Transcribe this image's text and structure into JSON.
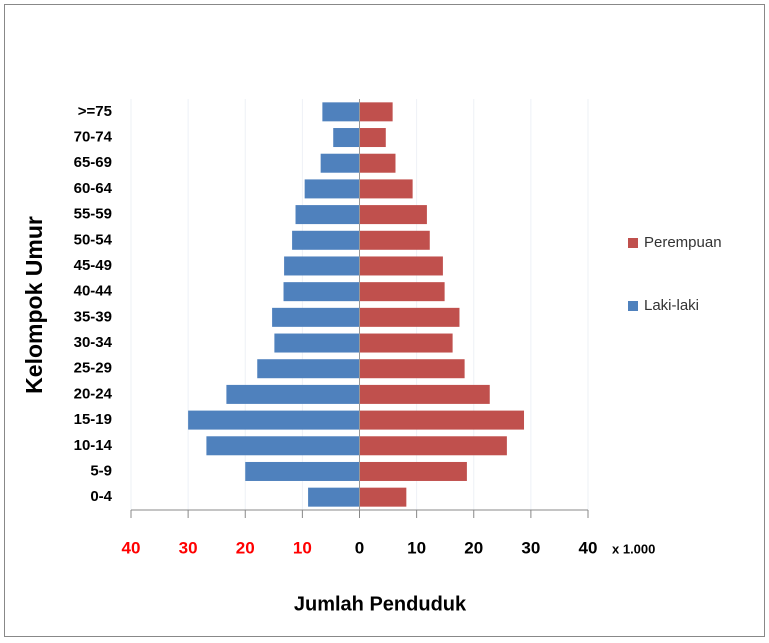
{
  "chart_data": {
    "type": "pyramid",
    "y_label": "Kelompok Umur",
    "x_label": "Jumlah Penduduk",
    "x_unit_note": "x 1.000",
    "categories": [
      "0-4",
      "5-9",
      "10-14",
      "15-19",
      "20-24",
      "25-29",
      "30-34",
      "35-39",
      "40-44",
      "45-49",
      "50-54",
      "55-59",
      "60-64",
      "65-69",
      "70-74",
      ">=75"
    ],
    "series": [
      {
        "name": "Perempuan",
        "color": "#c0504d",
        "values": [
          8.2,
          18.8,
          25.8,
          28.8,
          22.8,
          18.4,
          16.3,
          17.5,
          14.9,
          14.6,
          12.3,
          11.8,
          9.3,
          6.3,
          4.6,
          5.8
        ]
      },
      {
        "name": "Laki-laki",
        "color": "#4f81bd",
        "values": [
          -9,
          -20,
          -26.8,
          -30,
          -23.3,
          -17.9,
          -14.9,
          -15.3,
          -13.3,
          -13.2,
          -11.8,
          -11.2,
          -9.6,
          -6.8,
          -4.6,
          -6.5
        ]
      }
    ],
    "xlim": [
      -40,
      40
    ],
    "xticks": [
      {
        "value": -40,
        "label": "40"
      },
      {
        "value": -30,
        "label": "30"
      },
      {
        "value": -20,
        "label": "20"
      },
      {
        "value": -10,
        "label": "10"
      },
      0,
      10,
      20,
      30,
      40
    ],
    "grid": true,
    "legend": "right"
  }
}
